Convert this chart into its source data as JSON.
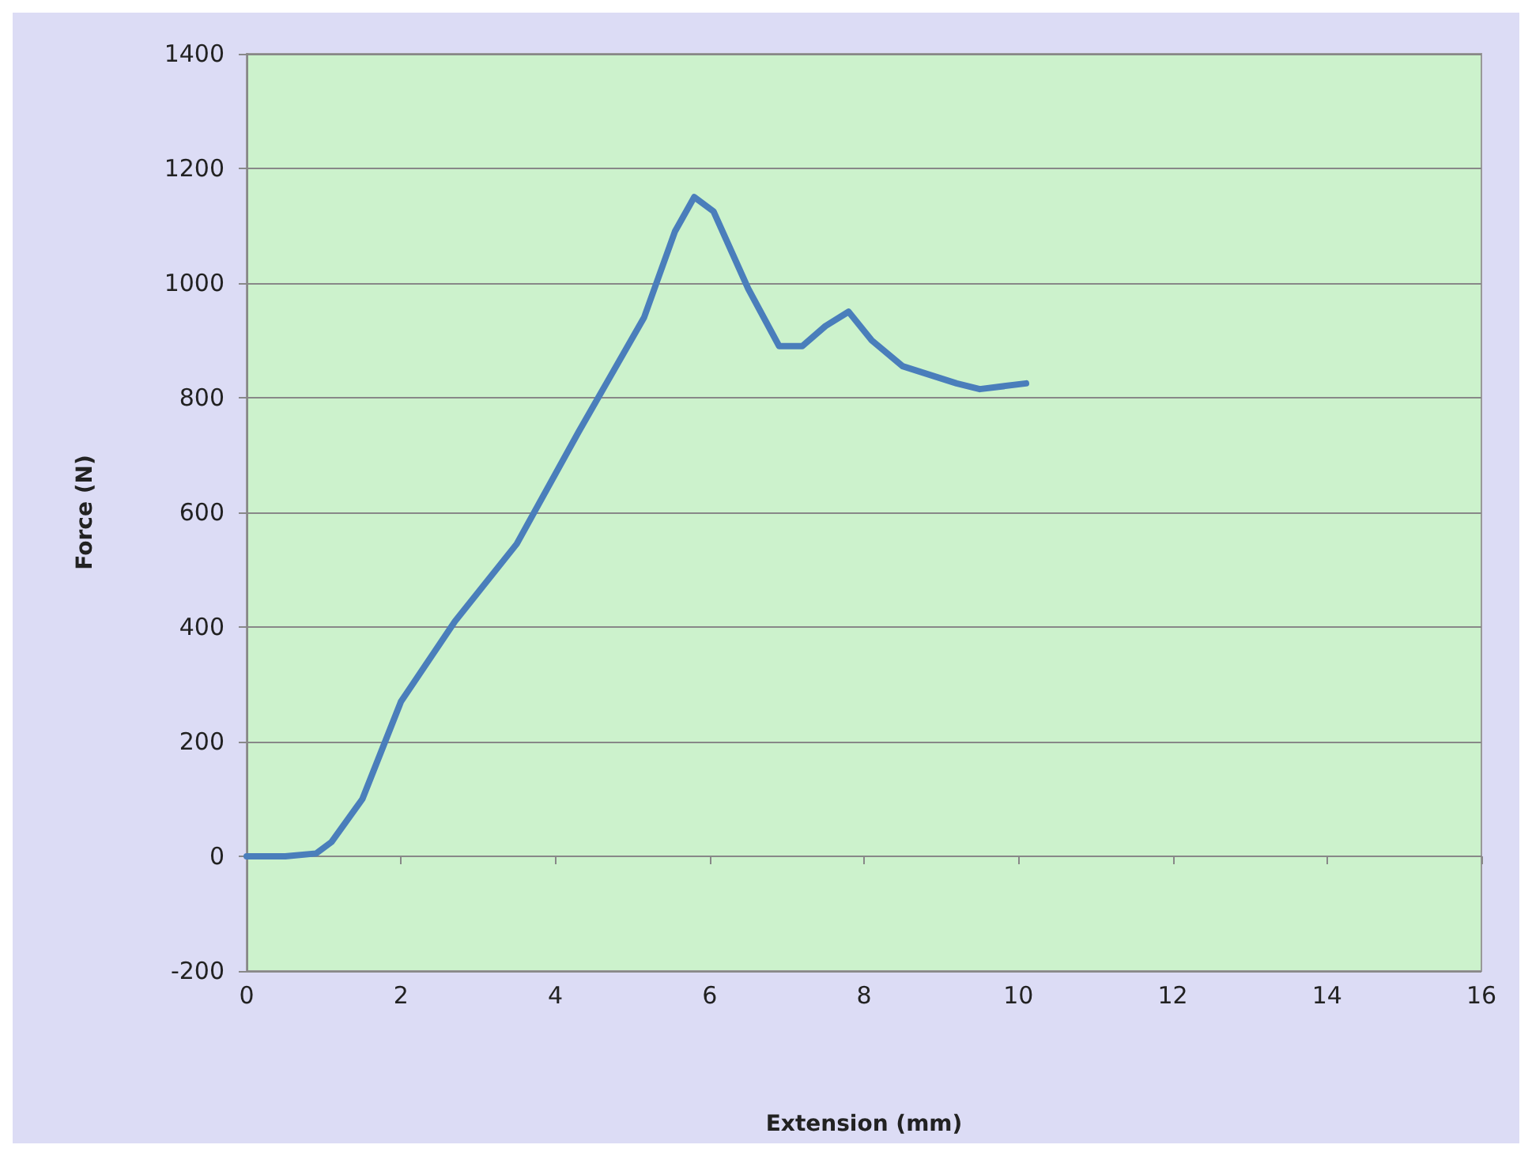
{
  "chart_data": {
    "type": "line",
    "xlabel": "Extension (mm)",
    "ylabel": "Force (N)",
    "x": [
      0,
      0.5,
      0.9,
      1.1,
      1.5,
      2.0,
      2.7,
      3.5,
      4.3,
      5.15,
      5.55,
      5.8,
      6.05,
      6.5,
      6.9,
      7.2,
      7.5,
      7.8,
      8.1,
      8.5,
      9.2,
      9.5,
      10.1
    ],
    "series": [
      {
        "color": "#4a7ebb",
        "values": [
          0,
          0,
          5,
          25,
          100,
          270,
          410,
          545,
          740,
          940,
          1090,
          1150,
          1125,
          990,
          890,
          890,
          925,
          950,
          900,
          855,
          825,
          815,
          825
        ]
      }
    ],
    "xlim": [
      0,
      16
    ],
    "xticks": [
      0,
      2,
      4,
      6,
      8,
      10,
      12,
      14,
      16
    ],
    "ylim": [
      -200,
      1400
    ],
    "yticks": [
      -200,
      0,
      200,
      400,
      600,
      800,
      1000,
      1200,
      1400
    ],
    "grid": "y",
    "marker": "none",
    "line_style": "solid"
  }
}
